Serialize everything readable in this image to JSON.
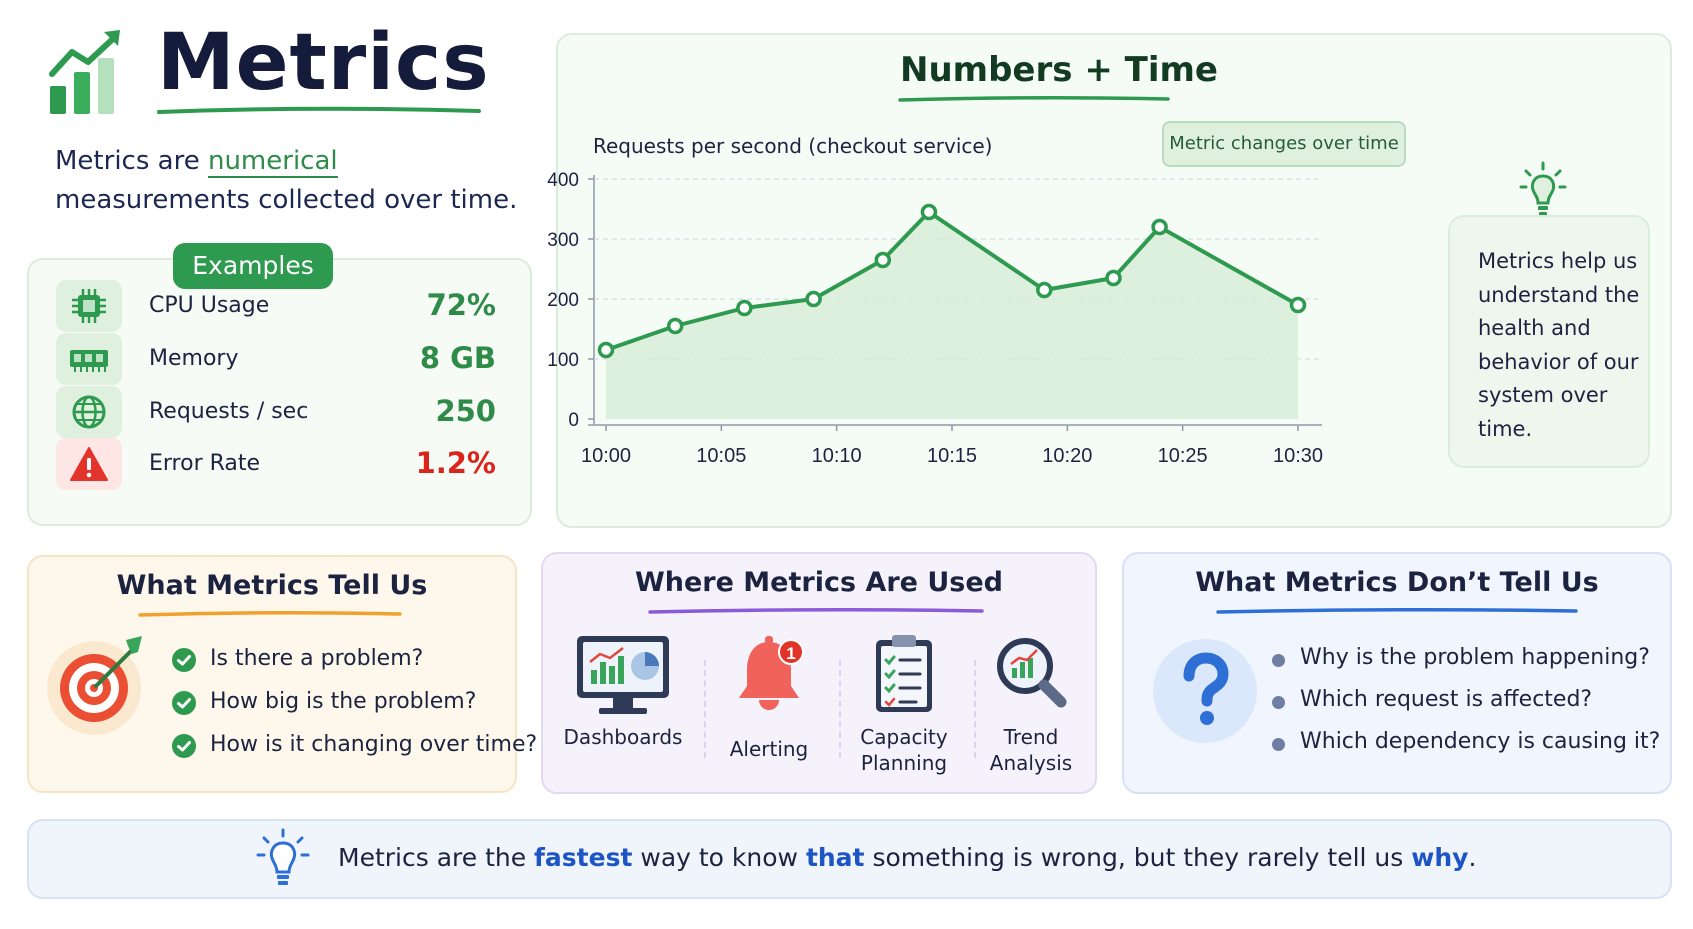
{
  "header": {
    "title": "Metrics",
    "intro_before": "Metrics are",
    "intro_highlight": "numerical",
    "intro_after": "measurements collected over time."
  },
  "examples": {
    "heading": "Examples",
    "items": [
      {
        "icon": "cpu-icon",
        "label": "CPU Usage",
        "value": "72%"
      },
      {
        "icon": "memory-icon",
        "label": "Memory",
        "value": "8 GB"
      },
      {
        "icon": "globe-icon",
        "label": "Requests / sec",
        "value": "250"
      },
      {
        "icon": "warning-icon",
        "label": "Error Rate",
        "value": "1.2%"
      }
    ]
  },
  "chart_data": {
    "type": "line",
    "title": "Numbers + Time",
    "subtitle": "Requests per second (checkout service)",
    "badge": "Metric changes over time",
    "x": [
      "10:00",
      "10:03",
      "10:06",
      "10:09",
      "10:12",
      "10:14",
      "10:19",
      "10:22",
      "10:24",
      "10:30"
    ],
    "values": [
      115,
      155,
      185,
      200,
      265,
      345,
      215,
      235,
      320,
      190
    ],
    "tick_labels": [
      "10:00",
      "10:05",
      "10:10",
      "10:15",
      "10:20",
      "10:25",
      "10:30"
    ],
    "ylim": [
      0,
      400
    ],
    "yticks": [
      "0",
      "100",
      "200",
      "300",
      "400"
    ],
    "grid": true,
    "fill": true,
    "color": "#2e9a4f"
  },
  "side_note": "Metrics help us understand the health and behavior of our system over time.",
  "tell": {
    "title": "What Metrics Tell Us",
    "items": [
      "Is there a problem?",
      "How big is the problem?",
      "How is it changing over time?"
    ]
  },
  "used": {
    "title": "Where Metrics Are Used",
    "items": [
      {
        "icon": "dashboard-icon",
        "label": "Dashboards"
      },
      {
        "icon": "alert-bell-icon",
        "label": "Alerting",
        "badge": "1"
      },
      {
        "icon": "clipboard-icon",
        "label": "Capacity Planning"
      },
      {
        "icon": "trend-magnifier-icon",
        "label": "Trend Analysis"
      }
    ]
  },
  "dont": {
    "title": "What Metrics Don’t Tell Us",
    "items": [
      "Why is the problem happening?",
      "Which request is affected?",
      "Which dependency is causing it?"
    ]
  },
  "footer": {
    "p1": "Metrics are the ",
    "b1": "fastest",
    "p2": " way to know ",
    "b2": "that",
    "p3": " something is wrong, but they rarely tell us ",
    "b3": "why",
    "p4": "."
  },
  "colors": {
    "accent_green": "#2e9a4f",
    "error_red": "#d9251c",
    "highlight_blue": "#1d55c4"
  }
}
